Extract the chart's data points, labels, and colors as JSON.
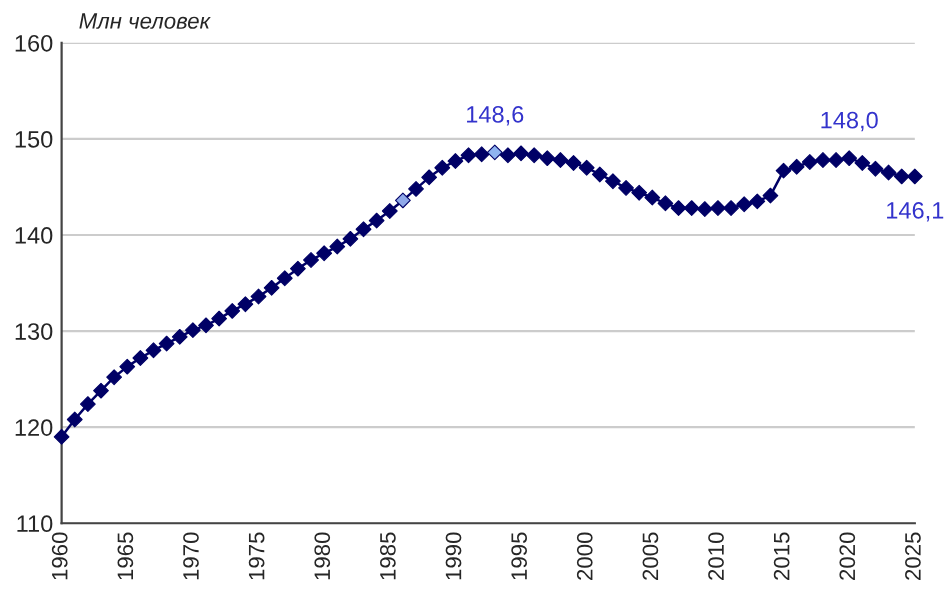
{
  "chart_data": {
    "type": "line",
    "ylabel": "Млн человек",
    "x": [
      1960,
      1961,
      1962,
      1963,
      1964,
      1965,
      1966,
      1967,
      1968,
      1969,
      1970,
      1971,
      1972,
      1973,
      1974,
      1975,
      1976,
      1977,
      1978,
      1979,
      1980,
      1981,
      1982,
      1983,
      1984,
      1985,
      1986,
      1987,
      1988,
      1989,
      1990,
      1991,
      1992,
      1993,
      1994,
      1995,
      1996,
      1997,
      1998,
      1999,
      2000,
      2001,
      2002,
      2003,
      2004,
      2005,
      2006,
      2007,
      2008,
      2009,
      2010,
      2011,
      2012,
      2013,
      2014,
      2015,
      2016,
      2017,
      2018,
      2019,
      2020,
      2021,
      2022,
      2023,
      2024,
      2025
    ],
    "series": [
      {
        "color": "#000066",
        "values": [
          119.0,
          120.8,
          122.4,
          123.8,
          125.2,
          126.3,
          127.2,
          128.0,
          128.7,
          129.4,
          130.1,
          130.6,
          131.3,
          132.1,
          132.8,
          133.6,
          134.5,
          135.5,
          136.5,
          137.4,
          138.1,
          138.8,
          139.6,
          140.6,
          141.5,
          142.5,
          143.6,
          144.8,
          146.0,
          147.0,
          147.7,
          148.3,
          148.4,
          148.6,
          148.3,
          148.5,
          148.3,
          148.0,
          147.8,
          147.5,
          147.0,
          146.3,
          145.6,
          144.9,
          144.4,
          143.9,
          143.3,
          142.8,
          142.8,
          142.7,
          142.8,
          142.8,
          143.2,
          143.5,
          144.1,
          146.7,
          147.1,
          147.6,
          147.8,
          147.8,
          148.0,
          147.5,
          146.9,
          146.5,
          146.1,
          146.1
        ],
        "colors": [
          "#000066",
          "#000066",
          "#000066",
          "#000066",
          "#000066",
          "#000066",
          "#000066",
          "#000066",
          "#000066",
          "#000066",
          "#000066",
          "#000066",
          "#000066",
          "#000066",
          "#000066",
          "#000066",
          "#000066",
          "#000066",
          "#000066",
          "#000066",
          "#000066",
          "#000066",
          "#000066",
          "#000066",
          "#000066",
          "#000066",
          "#8fa8e8",
          "#000066",
          "#000066",
          "#000066",
          "#000066",
          "#000066",
          "#000066",
          "#8fb4f0",
          "#000066",
          "#000066",
          "#000066",
          "#000066",
          "#000066",
          "#000066",
          "#000066",
          "#000066",
          "#000066",
          "#000066",
          "#000066",
          "#000066",
          "#000066",
          "#000066",
          "#000066",
          "#000066",
          "#000066",
          "#000066",
          "#000066",
          "#000066",
          "#000066",
          "#000066",
          "#000066",
          "#000066",
          "#000066",
          "#000066",
          "#000066",
          "#000066",
          "#000066",
          "#000066",
          "#000066",
          "#000066"
        ]
      }
    ],
    "annotations": [
      {
        "text": "148,6",
        "x": 1993,
        "y": 148.6
      },
      {
        "text": "148,0",
        "x": 2020,
        "y": 148.0
      },
      {
        "text": "146,1",
        "x": 2025,
        "y": 146.1
      }
    ],
    "xlim": [
      1960,
      2025
    ],
    "xticks": [
      1960,
      1965,
      1970,
      1975,
      1980,
      1985,
      1990,
      1995,
      2000,
      2005,
      2010,
      2015,
      2020,
      2025
    ],
    "ylim": [
      110,
      160
    ],
    "yticks": [
      110,
      120,
      130,
      140,
      150,
      160
    ],
    "grid": "y",
    "marker": "diamond",
    "line_style": "solid",
    "legend": false
  }
}
